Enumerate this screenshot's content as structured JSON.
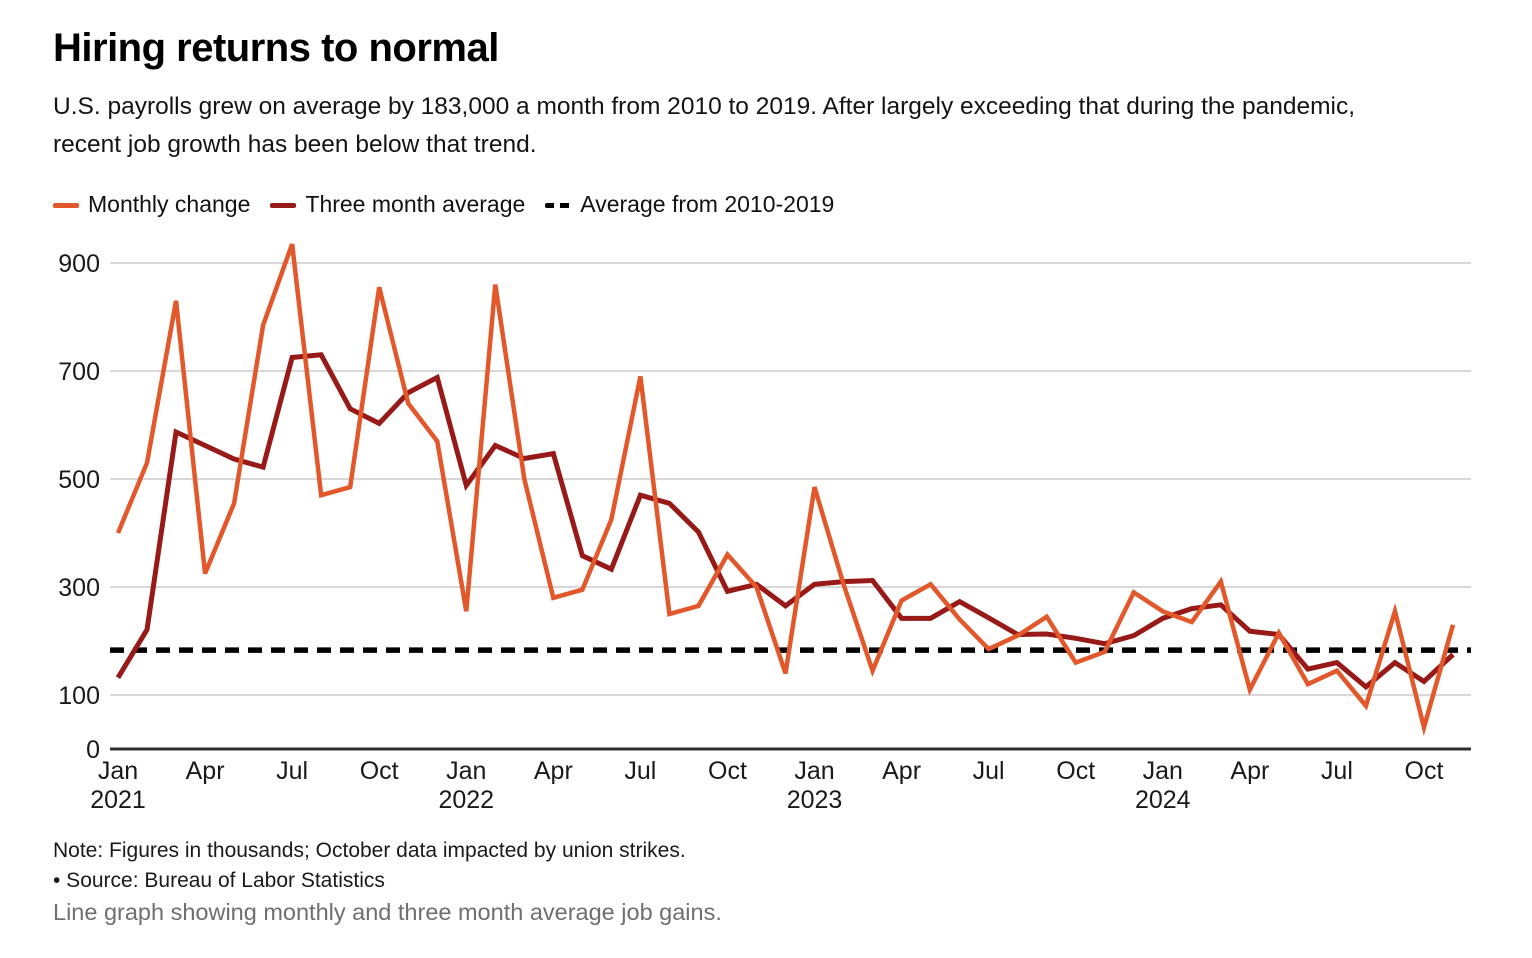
{
  "header": {
    "title": "Hiring returns to normal",
    "subtitle_line1": "U.S. payrolls grew on average by 183,000 a month from 2010 to 2019. After largely exceeding that during the pandemic,",
    "subtitle_line2": "recent job growth has been below that trend."
  },
  "legend": {
    "items": [
      {
        "label": "Monthly change",
        "color": "#E2582A",
        "style": "solid"
      },
      {
        "label": "Three month average",
        "color": "#971A18",
        "style": "solid"
      },
      {
        "label": "Average from 2010-2019",
        "color": "#000000",
        "style": "dashed"
      }
    ]
  },
  "chart_data": {
    "type": "line",
    "title": "Hiring returns to normal",
    "unit": "thousands of jobs",
    "grid": true,
    "legend_position": "top",
    "ylim": [
      0,
      940
    ],
    "yticks": [
      0,
      100,
      300,
      500,
      700,
      900
    ],
    "x_tick_interval_months": 3,
    "x": [
      "Jan 2021",
      "Feb 2021",
      "Mar 2021",
      "Apr 2021",
      "May 2021",
      "Jun 2021",
      "Jul 2021",
      "Aug 2021",
      "Sep 2021",
      "Oct 2021",
      "Nov 2021",
      "Dec 2021",
      "Jan 2022",
      "Feb 2022",
      "Mar 2022",
      "Apr 2022",
      "May 2022",
      "Jun 2022",
      "Jul 2022",
      "Aug 2022",
      "Sep 2022",
      "Oct 2022",
      "Nov 2022",
      "Dec 2022",
      "Jan 2023",
      "Feb 2023",
      "Mar 2023",
      "Apr 2023",
      "May 2023",
      "Jun 2023",
      "Jul 2023",
      "Aug 2023",
      "Sep 2023",
      "Oct 2023",
      "Nov 2023",
      "Dec 2023",
      "Jan 2024",
      "Feb 2024",
      "Mar 2024",
      "Apr 2024",
      "May 2024",
      "Jun 2024",
      "Jul 2024",
      "Aug 2024",
      "Sep 2024",
      "Oct 2024",
      "Nov 2024"
    ],
    "series": [
      {
        "name": "Monthly change",
        "color": "#E2582A",
        "stroke_width": 4.5,
        "values": [
          400,
          530,
          830,
          325,
          455,
          785,
          935,
          470,
          485,
          855,
          640,
          570,
          255,
          860,
          500,
          280,
          295,
          425,
          690,
          250,
          265,
          360,
          300,
          140,
          485,
          305,
          145,
          275,
          305,
          240,
          185,
          210,
          245,
          160,
          180,
          290,
          255,
          235,
          310,
          110,
          215,
          120,
          145,
          80,
          255,
          40,
          230
        ]
      },
      {
        "name": "Three month average",
        "color": "#971A18",
        "stroke_width": 5,
        "values": [
          132,
          221,
          587,
          562,
          537,
          522,
          725,
          730,
          630,
          603,
          660,
          688,
          488,
          562,
          538,
          547,
          358,
          333,
          470,
          455,
          402,
          292,
          305,
          265,
          305,
          310,
          312,
          242,
          242,
          273,
          243,
          212,
          213,
          205,
          195,
          210,
          242,
          260,
          267,
          218,
          212,
          148,
          160,
          115,
          160,
          125,
          175
        ]
      }
    ],
    "reference_line": {
      "name": "Average from 2010-2019",
      "value": 183,
      "color": "#000000",
      "style": "dashed"
    }
  },
  "notes": {
    "note": "Note: Figures in thousands; October data impacted by union strikes.",
    "source": "• Source: Bureau of Labor Statistics",
    "caption": "Line graph showing monthly and three month average job gains."
  }
}
